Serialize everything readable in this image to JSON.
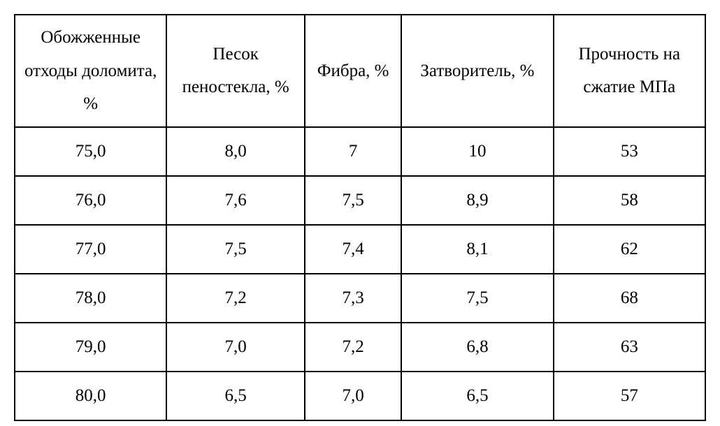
{
  "table": {
    "type": "table",
    "background_color": "#ffffff",
    "border_color": "#000000",
    "border_width": 2,
    "font_family": "Times New Roman",
    "header_fontsize": 25,
    "cell_fontsize": 25,
    "text_color": "#000000",
    "column_widths_pct": [
      22,
      20,
      14,
      22,
      22
    ],
    "alignment": "center",
    "columns": [
      "Обожженные отходы доломита, %",
      "Песок пеностекла, %",
      "Фибра, %",
      "Затворитель, %",
      "Прочность на сжатие МПа"
    ],
    "rows": [
      [
        "75,0",
        "8,0",
        "7",
        "10",
        "53"
      ],
      [
        "76,0",
        "7,6",
        "7,5",
        "8,9",
        "58"
      ],
      [
        "77,0",
        "7,5",
        "7,4",
        "8,1",
        "62"
      ],
      [
        "78,0",
        "7,2",
        "7,3",
        "7,5",
        "68"
      ],
      [
        "79,0",
        "7,0",
        "7,2",
        "6,8",
        "63"
      ],
      [
        "80,0",
        "6,5",
        "7,0",
        "6,5",
        "57"
      ]
    ]
  }
}
